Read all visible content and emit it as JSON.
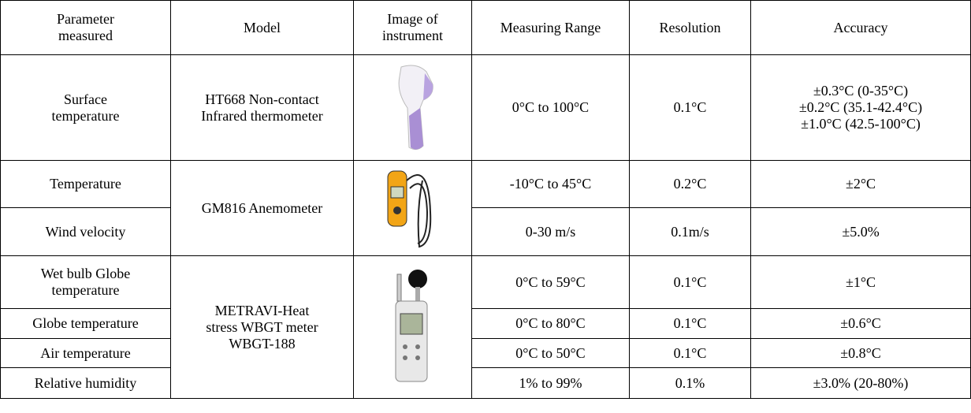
{
  "table": {
    "headers": [
      "Parameter\nmeasured",
      "Model",
      "Image of\ninstrument",
      "Measuring Range",
      "Resolution",
      "Accuracy"
    ],
    "groups": [
      {
        "model": "HT668 Non-contact\nInfrared thermometer",
        "rows": [
          {
            "parameter": "Surface\ntemperature",
            "range": "0°C to 100°C",
            "resolution": "0.1°C",
            "accuracy": "±0.3°C (0-35°C)\n±0.2°C (35.1-42.4°C)\n±1.0°C (42.5-100°C)"
          }
        ]
      },
      {
        "model": "GM816 Anemometer",
        "rows": [
          {
            "parameter": "Temperature",
            "range": "-10°C to 45°C",
            "resolution": "0.2°C",
            "accuracy": "±2°C"
          },
          {
            "parameter": "Wind velocity",
            "range": "0-30 m/s",
            "resolution": "0.1m/s",
            "accuracy": "±5.0%"
          }
        ]
      },
      {
        "model": "METRAVI-Heat\nstress WBGT meter\nWBGT-188",
        "rows": [
          {
            "parameter": "Wet bulb Globe\ntemperature",
            "range": "0°C to 59°C",
            "resolution": "0.1°C",
            "accuracy": "±1°C"
          },
          {
            "parameter": "Globe temperature",
            "range": "0°C to 80°C",
            "resolution": "0.1°C",
            "accuracy": "±0.6°C"
          },
          {
            "parameter": "Air temperature",
            "range": "0°C to 50°C",
            "resolution": "0.1°C",
            "accuracy": "±0.8°C"
          },
          {
            "parameter": "Relative humidity",
            "range": "1% to 99%",
            "resolution": "0.1%",
            "accuracy": "±3.0% (20-80%)"
          }
        ]
      }
    ]
  }
}
